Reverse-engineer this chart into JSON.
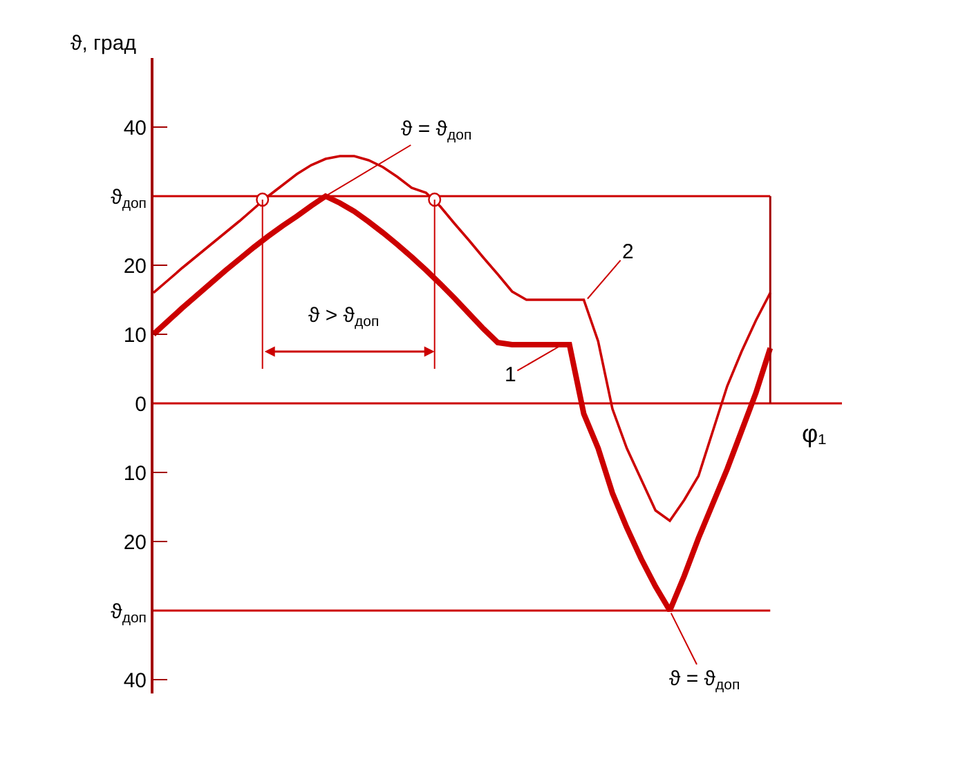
{
  "chart_data": {
    "type": "line",
    "ylabel": "ϑ, град",
    "xlabel": "φ₁",
    "categories": [
      null,
      null,
      null,
      null,
      null,
      null,
      null,
      null,
      null,
      null,
      null,
      null,
      null,
      null,
      null,
      null,
      null,
      null,
      null,
      null,
      null,
      null,
      null,
      null,
      null,
      null,
      null,
      null,
      null,
      null,
      null,
      null,
      null,
      null,
      null,
      null,
      null,
      null,
      null,
      null,
      null,
      null,
      null,
      null
    ],
    "series": [
      {
        "name": "1",
        "color": "#cc0000",
        "values": [
          10,
          11.9,
          13.8,
          15.6,
          17.4,
          19.2,
          20.9,
          22.6,
          24.2,
          25.7,
          27.1,
          28.6,
          30,
          29,
          27.8,
          26.3,
          24.7,
          23,
          21.2,
          19.3,
          17.3,
          15.2,
          13,
          10.8,
          8.8,
          8.5,
          8.5,
          8.5,
          8.5,
          8.5,
          -1.5,
          -6.5,
          -13,
          -18,
          -22.5,
          -26.5,
          -30,
          -25,
          -19.5,
          -14.5,
          -9.5,
          -4,
          1.5,
          8
        ]
      },
      {
        "name": "2",
        "color": "#cc0000",
        "values": [
          16,
          17.8,
          19.6,
          21.3,
          23,
          24.7,
          26.4,
          28.2,
          30,
          31.6,
          33.2,
          34.5,
          35.4,
          35.8,
          35.8,
          35.2,
          34.2,
          32.8,
          31.2,
          30.5,
          28.5,
          26,
          23.6,
          21.1,
          18.7,
          16.2,
          15,
          15,
          15,
          15,
          15,
          9,
          -0.8,
          -6.5,
          -11,
          -15.5,
          -17,
          -14,
          -10.5,
          -4,
          2.5,
          7.5,
          12,
          16
        ]
      }
    ],
    "ylim": [
      -42,
      50
    ],
    "yticks": [
      40,
      {
        "value": 30,
        "label": "ϑ$_{доп}$"
      },
      20,
      10,
      0,
      {
        "value": -10,
        "label": "10"
      },
      {
        "value": -20,
        "label": "20"
      },
      {
        "value": -30,
        "label": "ϑ$_{доп}$"
      },
      {
        "value": -40,
        "label": "40"
      }
    ],
    "ref_lines": [
      {
        "axis": "y",
        "value": 30,
        "color": "#cc0000"
      },
      {
        "axis": "y",
        "value": -30,
        "color": "#cc0000"
      },
      {
        "axis": "y",
        "value": 0,
        "color": "#cc0000"
      }
    ],
    "annotations": [
      "ϑ = ϑ$_{доп}$",
      "ϑ > ϑ$_{доп}$",
      "ϑ = ϑ$_{доп}$"
    ],
    "tick_labels": "y",
    "grid": false,
    "legend": false,
    "marker": "none",
    "line_style": "solid"
  }
}
